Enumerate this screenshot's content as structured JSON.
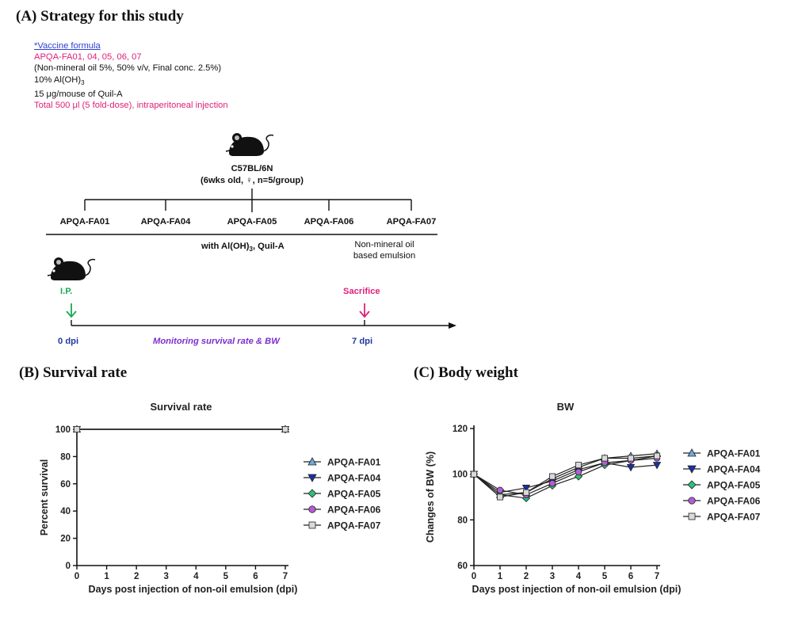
{
  "panel_a": {
    "title": "(A) Strategy for this study",
    "formula": {
      "header": "*Vaccine formula",
      "line1": "APQA-FA01, 04, 05, 06, 07",
      "line2": "(Non-mineral oil 5%, 50% v/v, Final conc. 2.5%)",
      "line3_main": "10% Al(OH)",
      "line3_sub": "3",
      "line4": "15 μg/mouse of Quil-A",
      "line5": "Total 500 μl (5 fold-dose), intraperitoneal injection"
    },
    "strain": "C57BL/6N",
    "strain_detail": "(6wks old, ♀, n=5/group)",
    "groups": [
      "APQA-FA01",
      "APQA-FA04",
      "APQA-FA05",
      "APQA-FA06",
      "APQA-FA07"
    ],
    "adjuvant_pre": "with Al(OH)",
    "adjuvant_sub": "3",
    "adjuvant_post": ", Quil-A",
    "emulsion_note_1": "Non-mineral oil",
    "emulsion_note_2": "based emulsion",
    "route": "I.P.",
    "sacrifice": "Sacrifice",
    "start_label": "0 dpi",
    "end_label": "7 dpi",
    "monitoring": "Monitoring survival rate & BW",
    "colors": {
      "pink": "#e0207a",
      "blue": "#2d9be0",
      "green": "#1aaa55",
      "navy": "#1f3a9e",
      "purple": "#7b2fd0"
    }
  },
  "panel_b": {
    "title": "(B) Survival rate"
  },
  "panel_c": {
    "title": "(C) Body weight"
  },
  "chart_data": [
    {
      "type": "line",
      "title": "Survival rate",
      "xlabel": "Days post injection of non-oil emulsion (dpi)",
      "ylabel": "Percent survival",
      "x_ticks": [
        0,
        1,
        2,
        3,
        4,
        5,
        6,
        7
      ],
      "y_ticks": [
        0,
        20,
        40,
        60,
        80,
        100
      ],
      "xlim": [
        0,
        7
      ],
      "ylim": [
        0,
        100
      ],
      "x": [
        0,
        7
      ],
      "series": [
        {
          "name": "APQA-FA01",
          "marker": "triangle-up",
          "color": "#6fa8dc",
          "values": [
            100,
            100
          ]
        },
        {
          "name": "APQA-FA04",
          "marker": "triangle-down",
          "color": "#1a2fa8",
          "values": [
            100,
            100
          ]
        },
        {
          "name": "APQA-FA05",
          "marker": "diamond",
          "color": "#2fbf7a",
          "values": [
            100,
            100
          ]
        },
        {
          "name": "APQA-FA06",
          "marker": "circle",
          "color": "#b55bd6",
          "values": [
            100,
            100
          ]
        },
        {
          "name": "APQA-FA07",
          "marker": "square",
          "color": "#d9d9d9",
          "values": [
            100,
            100
          ]
        }
      ],
      "legend": "right"
    },
    {
      "type": "line",
      "title": "BW",
      "xlabel": "Days post injection of non-oil emulsion (dpi)",
      "ylabel": "Changes of BW (%)",
      "x_ticks": [
        0,
        1,
        2,
        3,
        4,
        5,
        6,
        7
      ],
      "y_ticks": [
        60,
        80,
        100,
        120
      ],
      "xlim": [
        0,
        7
      ],
      "ylim": [
        60,
        120
      ],
      "x": [
        0,
        1,
        2,
        3,
        4,
        5,
        6,
        7
      ],
      "series": [
        {
          "name": "APQA-FA01",
          "marker": "triangle-up",
          "color": "#6fa8dc",
          "values": [
            100,
            91,
            92,
            98,
            103,
            107,
            108,
            109
          ]
        },
        {
          "name": "APQA-FA04",
          "marker": "triangle-down",
          "color": "#1a2fa8",
          "values": [
            100,
            92,
            94,
            97,
            102,
            105,
            103,
            104
          ]
        },
        {
          "name": "APQA-FA05",
          "marker": "diamond",
          "color": "#2fbf7a",
          "values": [
            100,
            91,
            89.5,
            95,
            99,
            104,
            106,
            108
          ]
        },
        {
          "name": "APQA-FA06",
          "marker": "circle",
          "color": "#b55bd6",
          "values": [
            100,
            93,
            91,
            96,
            101,
            105,
            106,
            107
          ]
        },
        {
          "name": "APQA-FA07",
          "marker": "square",
          "color": "#d9d9d9",
          "values": [
            100,
            90,
            92,
            99,
            104,
            107,
            107,
            108
          ]
        }
      ],
      "legend": "right"
    }
  ]
}
